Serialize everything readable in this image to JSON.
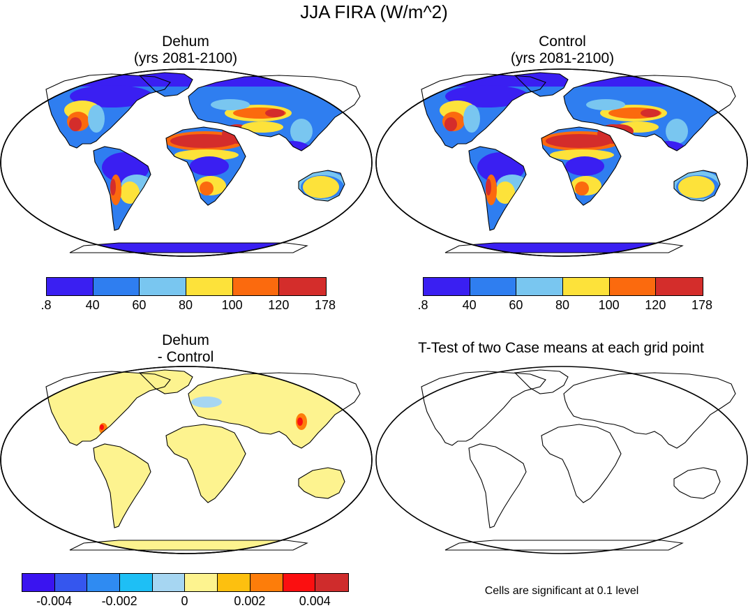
{
  "title": "JJA FIRA (W/m^2)",
  "panels": [
    {
      "title_line1": "Dehum",
      "title_line2": "(yrs 2081-2100)"
    },
    {
      "title_line1": "Control",
      "title_line2": "(yrs 2081-2100)"
    },
    {
      "title_line1": "Dehum",
      "title_line2": "- Control"
    },
    {
      "title_line1": "T-Test of two Case means at each grid point",
      "title_line2": ""
    }
  ],
  "colorbar_abs": {
    "labels": [
      ".8",
      "40",
      "60",
      "80",
      "100",
      "120",
      "178"
    ],
    "colors": [
      "#3a1ff2",
      "#2f7ef0",
      "#79c6f0",
      "#fde23a",
      "#fb6a0e",
      "#d42d2b"
    ]
  },
  "colorbar_diff": {
    "labels": [
      "-0.004",
      "-0.002",
      "0",
      "0.002",
      "0.004"
    ],
    "colors": [
      "#3a14f0",
      "#3556ee",
      "#2f8bf2",
      "#1ebff5",
      "#a6d6f2",
      "#fdf38f",
      "#fdc00f",
      "#fd7d0a",
      "#fb0f10",
      "#cf2c2c"
    ]
  },
  "note": "Cells are significant at 0.1 level"
}
